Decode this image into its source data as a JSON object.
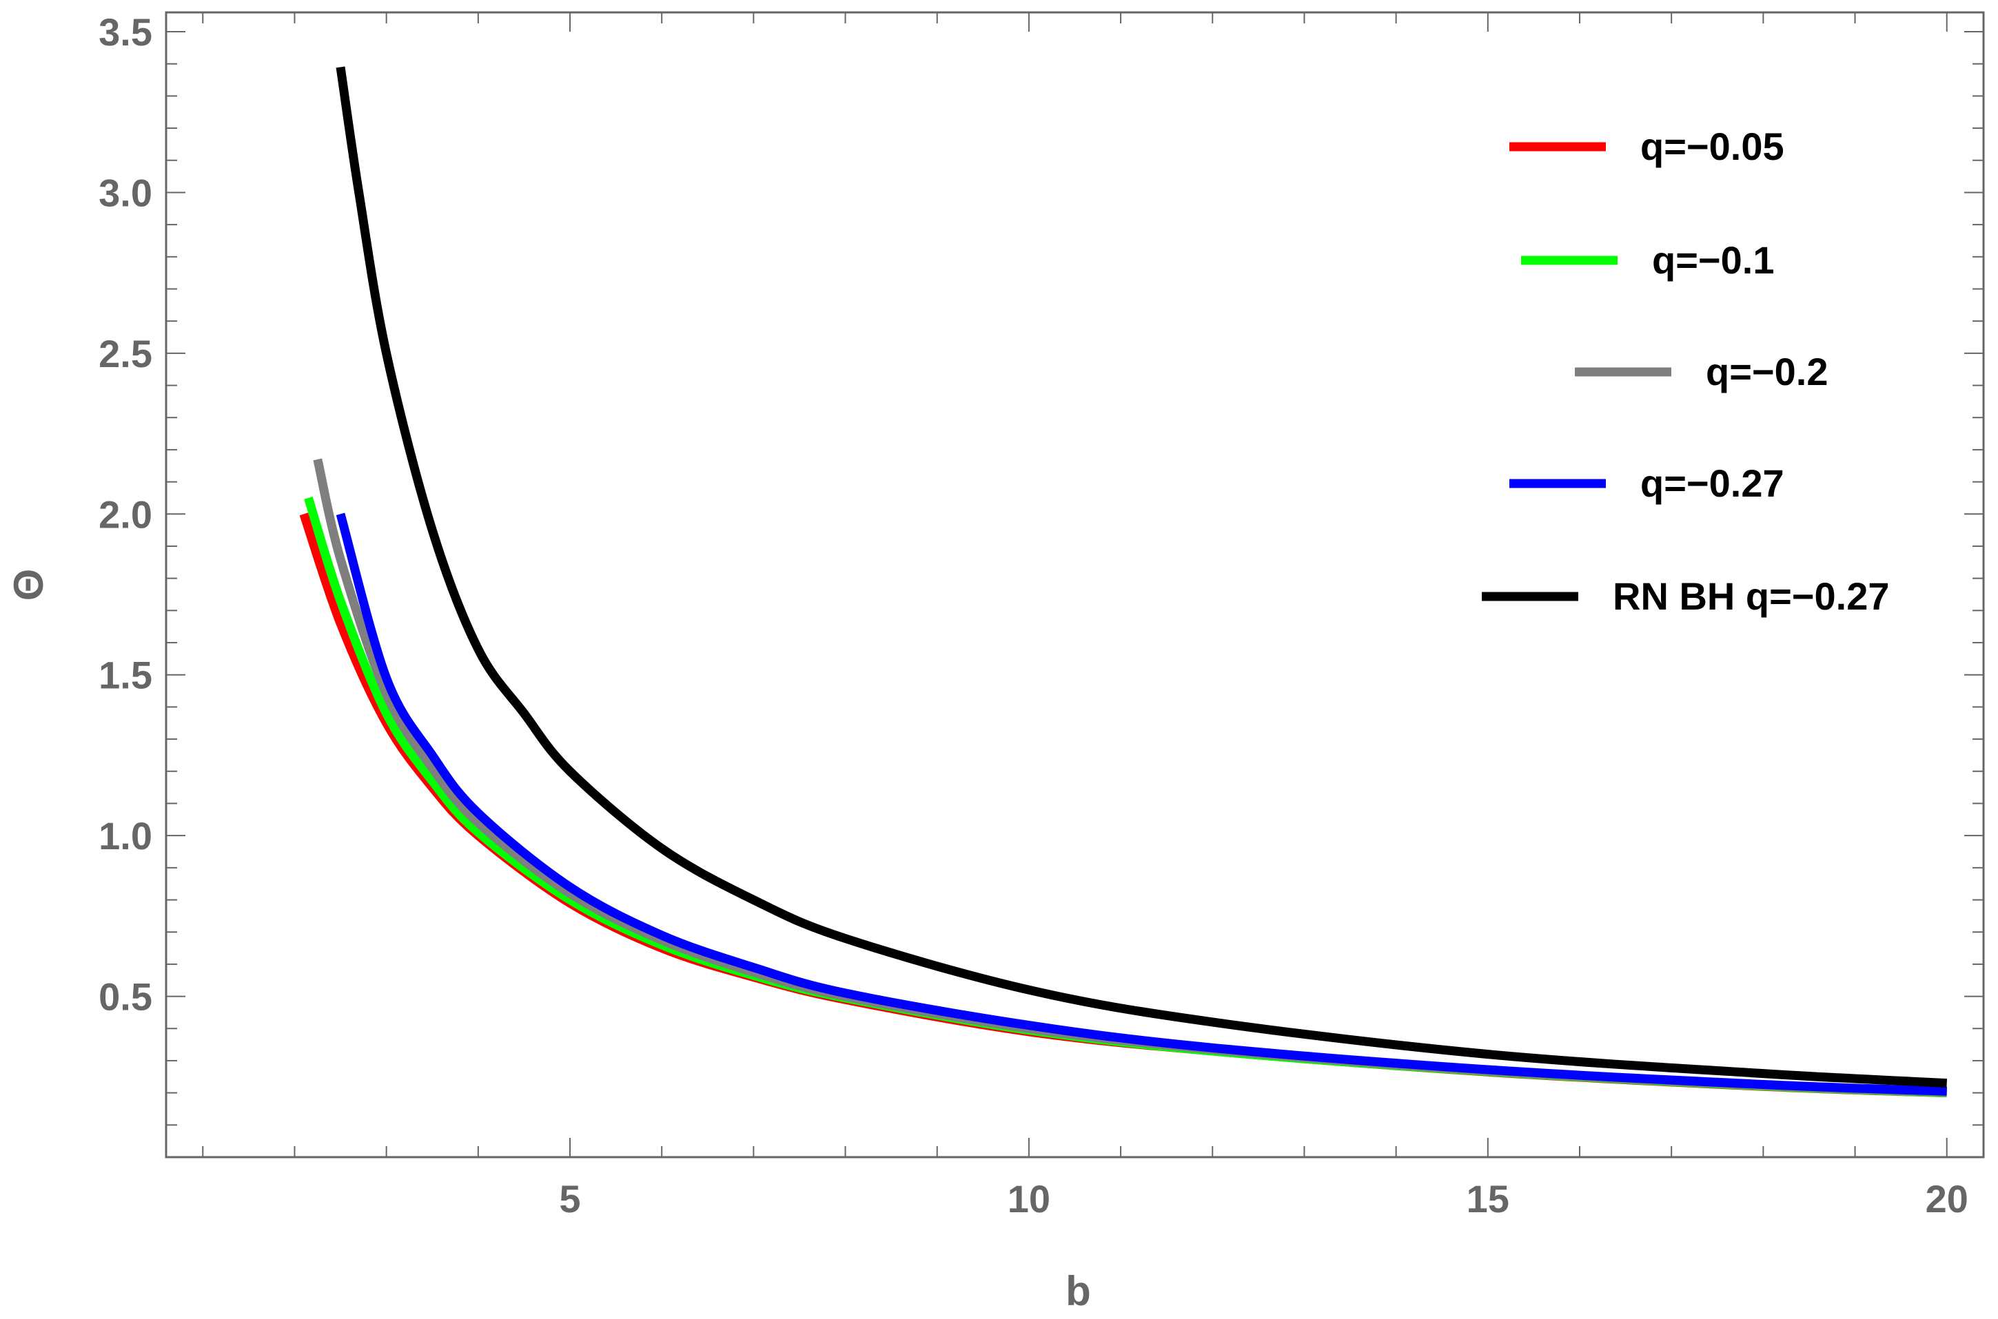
{
  "chart_data": {
    "type": "line",
    "xlabel": "b",
    "ylabel": "Θ",
    "xlim": [
      0.6,
      20.4
    ],
    "ylim": [
      0.0,
      3.56
    ],
    "x_ticks_major": [
      5,
      10,
      15,
      20
    ],
    "x_tick_labels": [
      "5",
      "10",
      "15",
      "20"
    ],
    "y_ticks_major": [
      0.5,
      1.0,
      1.5,
      2.0,
      2.5,
      3.0,
      3.5
    ],
    "y_tick_labels": [
      "0.5",
      "1.0",
      "1.5",
      "2.0",
      "2.5",
      "3.0",
      "3.5"
    ],
    "grid": false,
    "frame": true,
    "legend_position": "top-right",
    "series": [
      {
        "name": "q=−0.05",
        "color": "#ff0000",
        "x": [
          2.1,
          2.5,
          3,
          3.5,
          4,
          5,
          6,
          7,
          8,
          10,
          12,
          15,
          18,
          20
        ],
        "y": [
          2.0,
          1.66,
          1.35,
          1.15,
          1.0,
          0.79,
          0.65,
          0.56,
          0.49,
          0.39,
          0.33,
          0.265,
          0.22,
          0.2
        ]
      },
      {
        "name": "q=−0.1",
        "color": "#00ff00",
        "x": [
          2.15,
          2.5,
          3,
          3.5,
          4,
          5,
          6,
          7,
          8,
          10,
          12,
          15,
          18,
          20
        ],
        "y": [
          2.05,
          1.73,
          1.38,
          1.17,
          1.01,
          0.8,
          0.66,
          0.565,
          0.495,
          0.395,
          0.33,
          0.266,
          0.221,
          0.2
        ]
      },
      {
        "name": "q=−0.2",
        "color": "#7f7f7f",
        "x": [
          2.25,
          2.5,
          3,
          3.5,
          4,
          5,
          6,
          7,
          8,
          10,
          12,
          15,
          18,
          20
        ],
        "y": [
          2.17,
          1.86,
          1.44,
          1.21,
          1.04,
          0.82,
          0.675,
          0.575,
          0.5,
          0.4,
          0.335,
          0.268,
          0.223,
          0.202
        ]
      },
      {
        "name": "q=−0.27",
        "color": "#0000ff",
        "x": [
          2.5,
          3,
          3.5,
          4,
          5,
          6,
          7,
          8,
          10,
          12,
          15,
          18,
          20
        ],
        "y": [
          2.0,
          1.49,
          1.25,
          1.07,
          0.84,
          0.69,
          0.59,
          0.51,
          0.41,
          0.34,
          0.272,
          0.226,
          0.205
        ]
      },
      {
        "name": "RN BH q=−0.27",
        "color": "#000000",
        "x": [
          2.5,
          2.7,
          3,
          3.5,
          4,
          4.5,
          5,
          6,
          7,
          8,
          10,
          12,
          15,
          18,
          20
        ],
        "y": [
          3.39,
          3.0,
          2.5,
          1.95,
          1.58,
          1.38,
          1.2,
          0.96,
          0.8,
          0.68,
          0.52,
          0.42,
          0.32,
          0.26,
          0.23
        ]
      }
    ]
  }
}
